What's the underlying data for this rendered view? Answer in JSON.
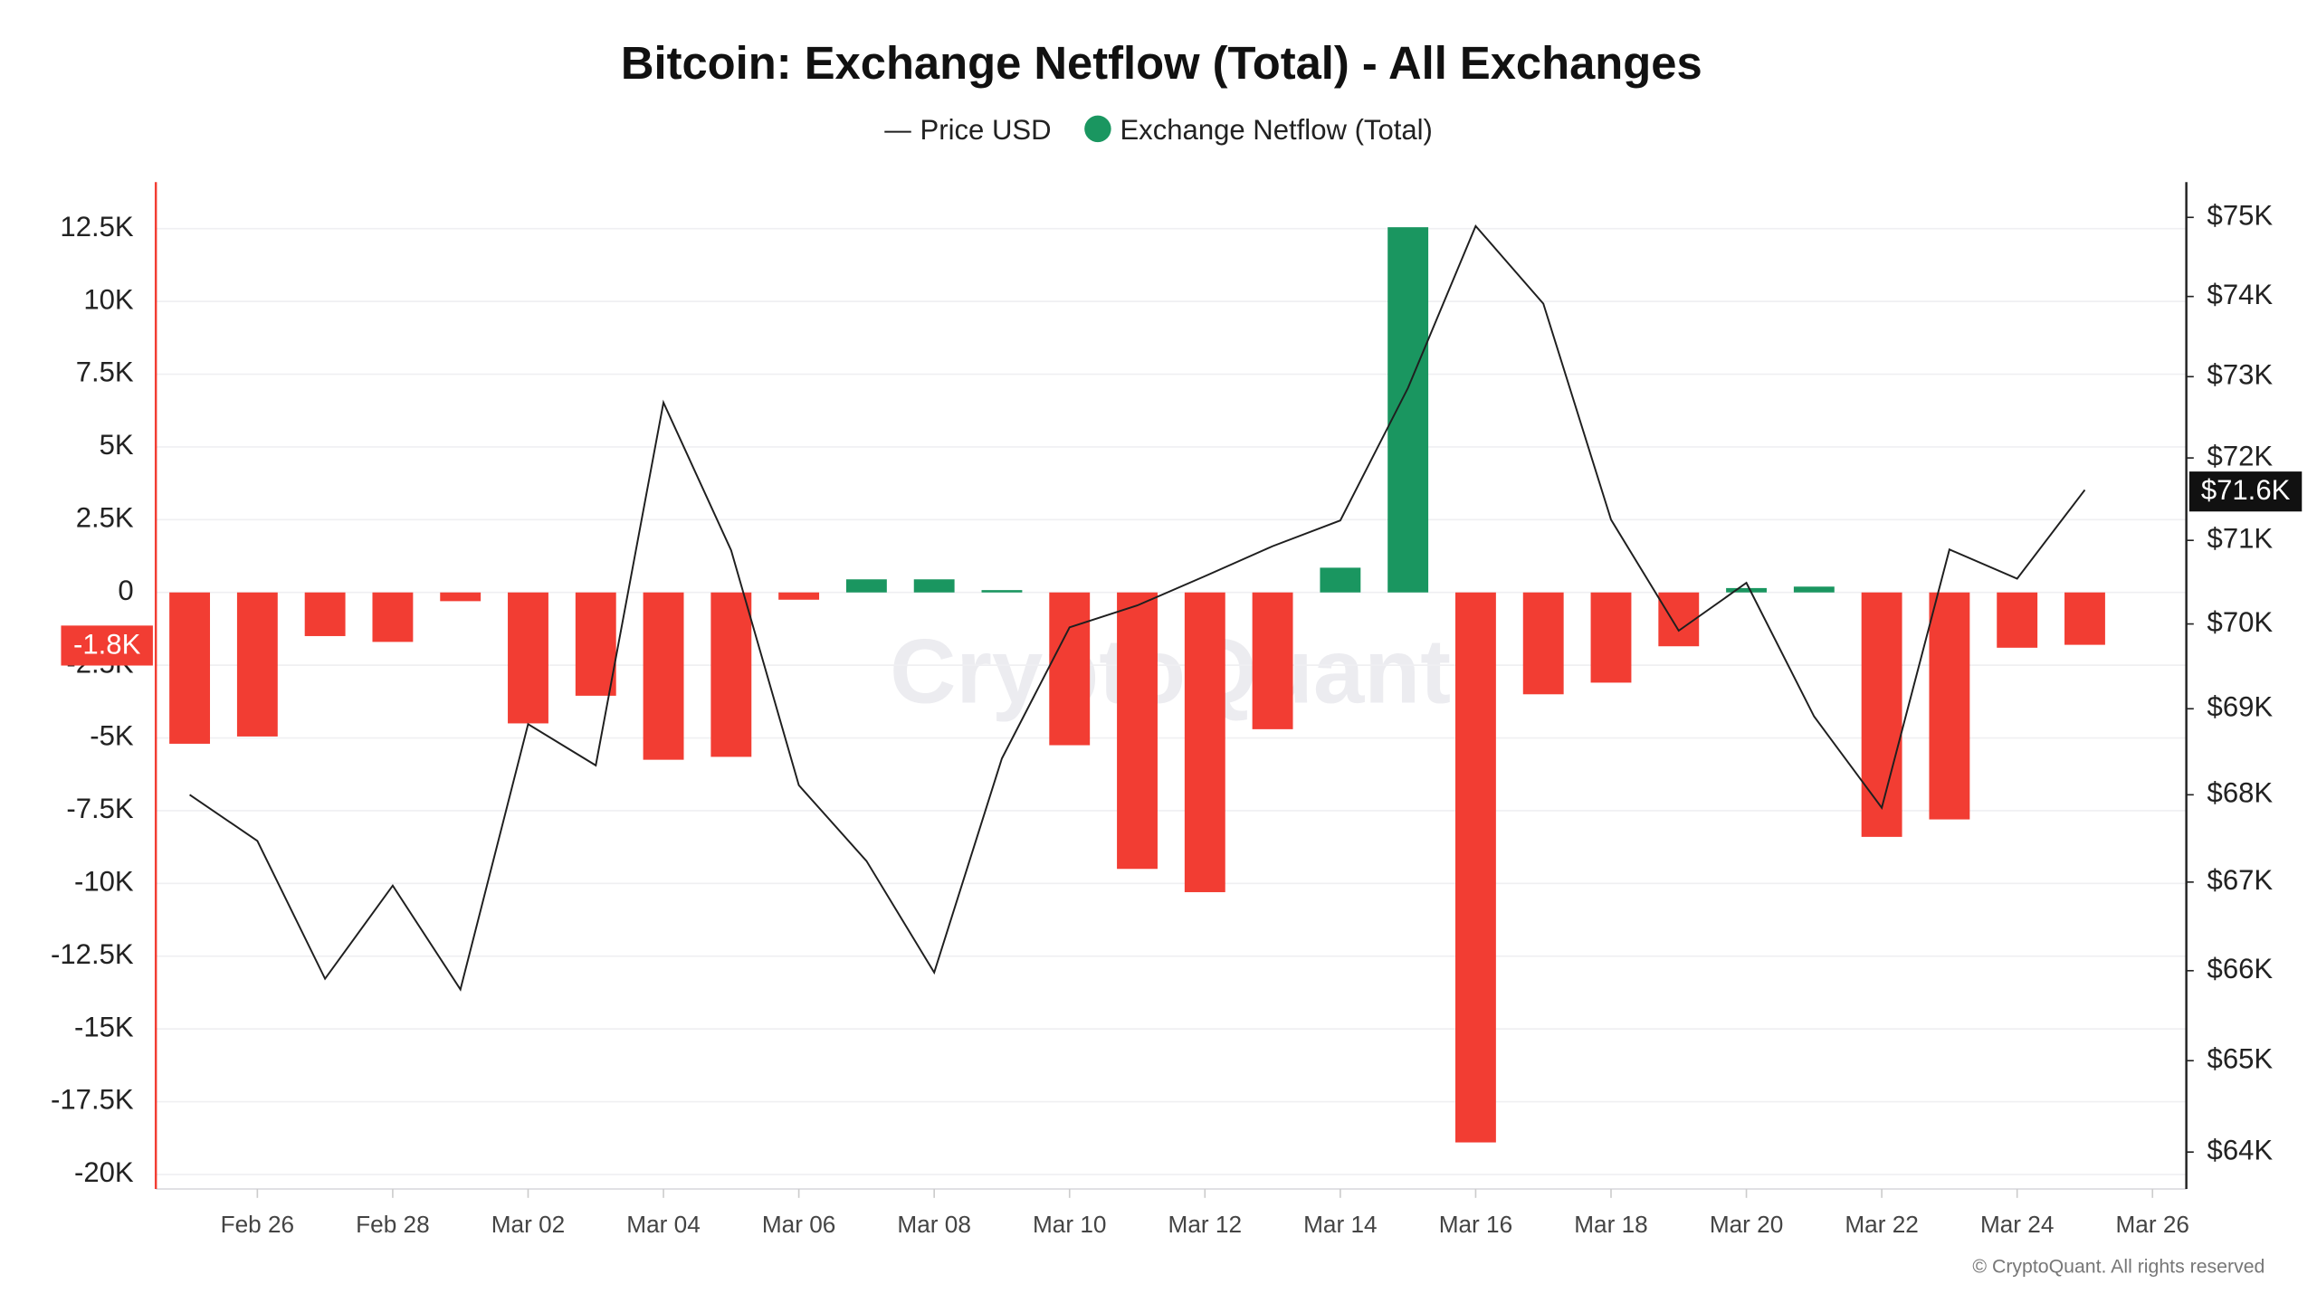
{
  "chart_data": {
    "type": "bar",
    "title": "Bitcoin: Exchange Netflow (Total) - All Exchanges",
    "watermark": "CryptoQuant",
    "credit": "© CryptoQuant. All rights reserved",
    "categories": [
      null,
      "Feb 26",
      null,
      "Feb 28",
      null,
      "Mar 02",
      null,
      "Mar 04",
      null,
      "Mar 06",
      null,
      "Mar 08",
      null,
      "Mar 10",
      null,
      "Mar 12",
      null,
      "Mar 14",
      null,
      "Mar 16",
      null,
      "Mar 18",
      null,
      "Mar 20",
      null,
      "Mar 22",
      null,
      "Mar 24",
      null,
      "Mar 26"
    ],
    "series": [
      {
        "name": "Price USD",
        "type": "line",
        "axis": "y2",
        "color": "#1f1f1f",
        "values": [
          68000,
          67470,
          65910,
          66960,
          65790,
          68820,
          68340,
          72680,
          70880,
          68110,
          67240,
          65980,
          68420,
          69960,
          70220,
          70570,
          70930,
          71240,
          72860,
          74890,
          73910,
          71250,
          69920,
          70490,
          68910,
          67850,
          70890,
          70540,
          71610,
          null
        ]
      },
      {
        "name": "Exchange Netflow (Total)",
        "type": "bar",
        "color": "#1a9660",
        "negative_color": "#f23d33",
        "values": [
          -5200,
          -4950,
          -1500,
          -1700,
          -300,
          -4500,
          -3550,
          -5750,
          -5650,
          -250,
          450,
          450,
          80,
          -5250,
          -9500,
          -10300,
          -4700,
          850,
          12550,
          -18900,
          -3500,
          -3100,
          -1850,
          150,
          200,
          -8400,
          -7800,
          -1900,
          -1800,
          null
        ]
      }
    ],
    "ylim": [
      -20500,
      14100
    ],
    "yticks": [
      {
        "value": -20000,
        "label": "-20K"
      },
      {
        "value": -17500,
        "label": "-17.5K"
      },
      {
        "value": -15000,
        "label": "-15K"
      },
      {
        "value": -12500,
        "label": "-12.5K"
      },
      {
        "value": -10000,
        "label": "-10K"
      },
      {
        "value": -7500,
        "label": "-7.5K"
      },
      {
        "value": -5000,
        "label": "-5K"
      },
      {
        "value": -2500,
        "label": "-2.5K"
      },
      0,
      {
        "value": 2500,
        "label": "2.5K"
      },
      {
        "value": 5000,
        "label": "5K"
      },
      {
        "value": 7500,
        "label": "7.5K"
      },
      {
        "value": 10000,
        "label": "10K"
      },
      {
        "value": 12500,
        "label": "12.5K"
      }
    ],
    "y2lim": [
      63600,
      75450
    ],
    "y2_log": true,
    "y2ticks": [
      {
        "value": 64000,
        "label": "$64K"
      },
      {
        "value": 65000,
        "label": "$65K"
      },
      {
        "value": 66000,
        "label": "$66K"
      },
      {
        "value": 67000,
        "label": "$67K"
      },
      {
        "value": 68000,
        "label": "$68K"
      },
      {
        "value": 69000,
        "label": "$69K"
      },
      {
        "value": 70000,
        "label": "$70K"
      },
      {
        "value": 71000,
        "label": "$71K"
      },
      {
        "value": 72000,
        "label": "$72K"
      },
      {
        "value": 73000,
        "label": "$73K"
      },
      {
        "value": 74000,
        "label": "$74K"
      },
      {
        "value": 75000,
        "label": "$75K"
      }
    ],
    "grid": true,
    "annotations": [
      {
        "text": "-1.8K",
        "value": -1800,
        "axis": "y",
        "color": "#f23d33"
      },
      {
        "text": "$71.6K",
        "value": 71600,
        "axis": "y2",
        "color": "#111111"
      }
    ]
  }
}
